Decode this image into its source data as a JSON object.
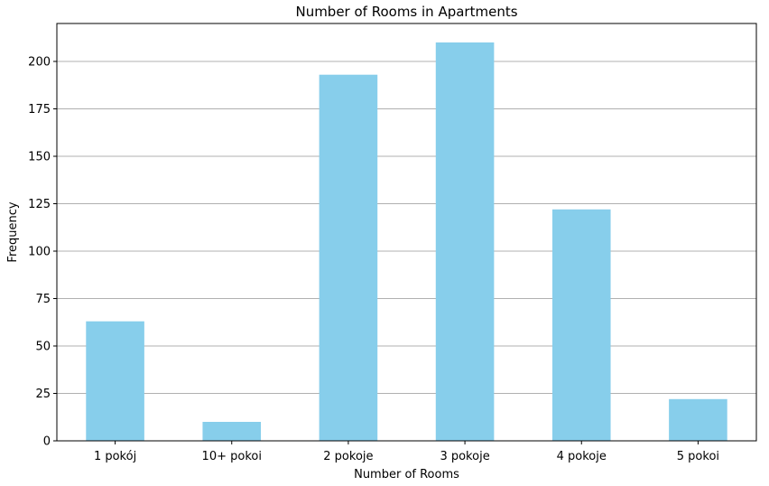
{
  "chart_data": {
    "type": "bar",
    "title": "Number of Rooms in Apartments",
    "xlabel": "Number of Rooms",
    "ylabel": "Frequency",
    "categories": [
      "1 pokój",
      "10+ pokoi",
      "2 pokoje",
      "3 pokoje",
      "4 pokoje",
      "5 pokoi"
    ],
    "values": [
      63,
      10,
      193,
      210,
      122,
      22
    ],
    "ylim": [
      0,
      220
    ],
    "yticks": [
      0,
      25,
      50,
      75,
      100,
      125,
      150,
      175,
      200
    ],
    "grid": "y",
    "bar_color": "#87CEEB",
    "grid_color": "#b0b0b0"
  }
}
